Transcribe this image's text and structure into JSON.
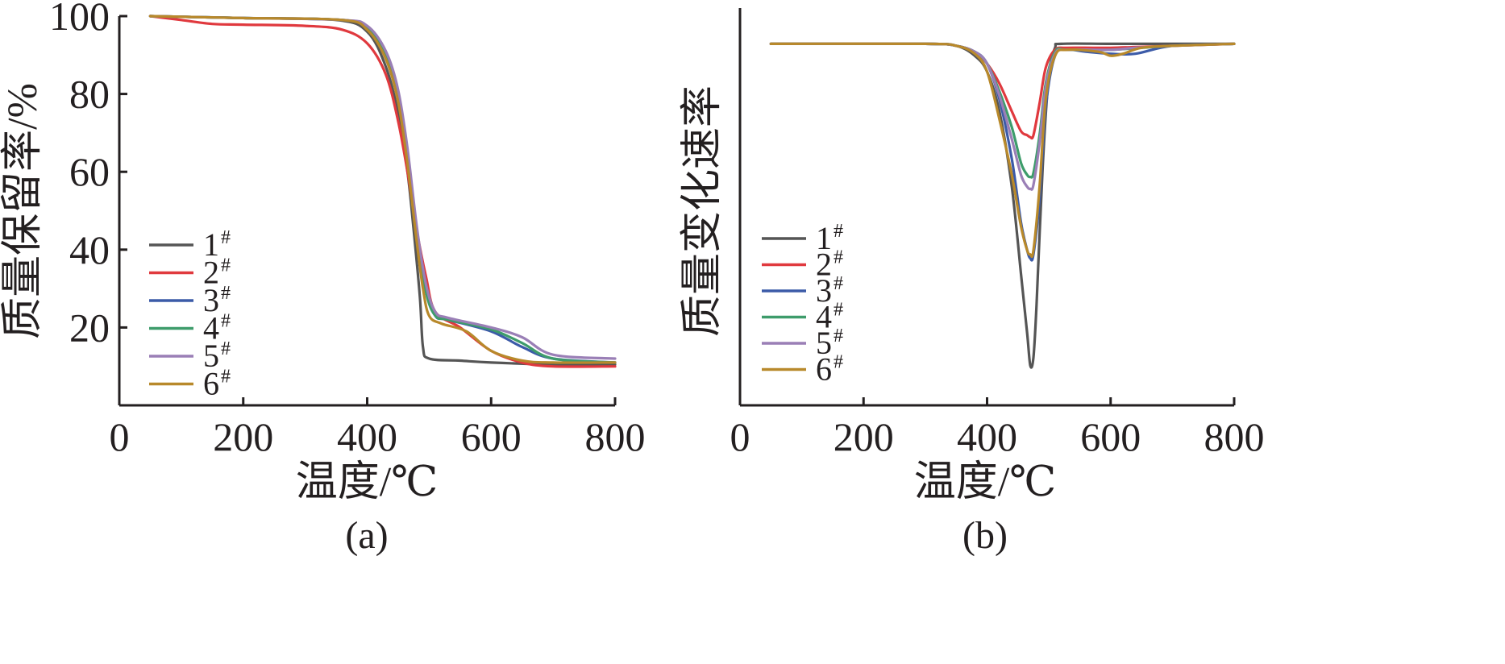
{
  "chart_data": [
    {
      "panel_label": "(a)",
      "type": "line",
      "xlabel": "温度/℃",
      "ylabel": "质量保留率/%",
      "xlim": [
        0,
        800
      ],
      "ylim": [
        0,
        100
      ],
      "xticks": [
        "0",
        "200",
        "400",
        "600",
        "800"
      ],
      "yticks": [
        "20",
        "40",
        "60",
        "80",
        "100"
      ],
      "ytick_values": [
        20,
        40,
        60,
        80,
        100
      ],
      "legend_position": "left-middle",
      "grid": false,
      "series": [
        {
          "name": "1",
          "sup": "#",
          "color": "#555555",
          "x": [
            50,
            200,
            350,
            400,
            430,
            450,
            465,
            475,
            485,
            490,
            500,
            550,
            600,
            700,
            800
          ],
          "y": [
            100,
            99.5,
            99,
            96,
            87,
            75,
            60,
            45,
            28,
            15,
            12,
            11.5,
            11,
            10.5,
            10.5
          ]
        },
        {
          "name": "2",
          "sup": "#",
          "color": "#e0393e",
          "x": [
            50,
            100,
            150,
            200,
            300,
            360,
            400,
            430,
            450,
            465,
            480,
            495,
            510,
            550,
            600,
            650,
            700,
            800
          ],
          "y": [
            100,
            99,
            98,
            97.8,
            97.5,
            96.5,
            93,
            85,
            73,
            60,
            45,
            33,
            24,
            20,
            14,
            11,
            10,
            10
          ]
        },
        {
          "name": "3",
          "sup": "#",
          "color": "#3c5ba8",
          "x": [
            50,
            200,
            360,
            400,
            430,
            450,
            465,
            480,
            495,
            510,
            530,
            600,
            650,
            700,
            800
          ],
          "y": [
            100,
            99.5,
            99,
            97,
            90,
            80,
            65,
            45,
            30,
            23,
            22,
            19,
            15,
            12,
            11
          ]
        },
        {
          "name": "4",
          "sup": "#",
          "color": "#3e9c6b",
          "x": [
            50,
            200,
            360,
            400,
            430,
            450,
            465,
            480,
            495,
            510,
            530,
            600,
            650,
            700,
            800
          ],
          "y": [
            100,
            99.5,
            99,
            97,
            90,
            79,
            64,
            44,
            29,
            23,
            22,
            19.5,
            16,
            12,
            11
          ]
        },
        {
          "name": "5",
          "sup": "#",
          "color": "#9a7fb6",
          "x": [
            50,
            200,
            360,
            400,
            430,
            450,
            465,
            480,
            495,
            510,
            530,
            600,
            650,
            700,
            800
          ],
          "y": [
            100,
            99.5,
            99,
            97.5,
            91,
            81,
            66,
            46,
            31,
            24,
            22.5,
            20,
            17.5,
            13,
            12
          ]
        },
        {
          "name": "6",
          "sup": "#",
          "color": "#b8892b",
          "x": [
            50,
            200,
            360,
            400,
            430,
            450,
            465,
            480,
            490,
            500,
            520,
            560,
            600,
            650,
            700,
            800
          ],
          "y": [
            100,
            99.5,
            99,
            96.5,
            89,
            78,
            62,
            42,
            30,
            23,
            21,
            19,
            14,
            11.5,
            11,
            11
          ]
        }
      ]
    },
    {
      "panel_label": "(b)",
      "type": "line",
      "xlabel": "温度/℃",
      "ylabel": "质量变化速率",
      "xlim": [
        0,
        800
      ],
      "ylim": [
        0,
        100
      ],
      "xticks": [
        "0",
        "200",
        "400",
        "600",
        "800"
      ],
      "yticks": [],
      "legend_position": "left-middle",
      "grid": false,
      "series": [
        {
          "name": "1",
          "sup": "#",
          "color": "#555555",
          "x": [
            50,
            300,
            350,
            380,
            400,
            420,
            440,
            455,
            465,
            470,
            475,
            480,
            490,
            500,
            510,
            520,
            600,
            700,
            800
          ],
          "y": [
            91,
            91,
            90.5,
            88,
            84,
            74,
            55,
            33,
            18,
            10,
            12,
            25,
            60,
            83,
            90,
            91,
            91,
            91,
            91
          ]
        },
        {
          "name": "2",
          "sup": "#",
          "color": "#e0393e",
          "x": [
            50,
            300,
            350,
            380,
            400,
            420,
            440,
            455,
            465,
            470,
            475,
            485,
            495,
            510,
            530,
            600,
            700,
            800
          ],
          "y": [
            91,
            91,
            90.5,
            89,
            86,
            81,
            74,
            69,
            68,
            67.5,
            68,
            76,
            85,
            89.5,
            90,
            90,
            90.5,
            91
          ]
        },
        {
          "name": "3",
          "sup": "#",
          "color": "#3c5ba8",
          "x": [
            50,
            300,
            350,
            380,
            400,
            420,
            440,
            455,
            465,
            470,
            475,
            485,
            495,
            510,
            530,
            560,
            600,
            640,
            700,
            800
          ],
          "y": [
            91,
            91,
            90.5,
            89,
            86,
            77,
            62,
            46,
            39,
            37,
            38,
            52,
            75,
            88,
            89.5,
            89,
            88.5,
            88.5,
            90.5,
            91
          ]
        },
        {
          "name": "4",
          "sup": "#",
          "color": "#3e9c6b",
          "x": [
            50,
            300,
            350,
            380,
            400,
            420,
            440,
            455,
            465,
            470,
            475,
            485,
            495,
            510,
            530,
            600,
            700,
            800
          ],
          "y": [
            91,
            91,
            90.5,
            89,
            86,
            79,
            70,
            61,
            58,
            57.5,
            58.5,
            68,
            81,
            89,
            89.5,
            89.5,
            90.5,
            91
          ]
        },
        {
          "name": "5",
          "sup": "#",
          "color": "#9a7fb6",
          "x": [
            50,
            300,
            350,
            380,
            400,
            420,
            440,
            455,
            465,
            470,
            475,
            485,
            495,
            510,
            530,
            600,
            640,
            700,
            800
          ],
          "y": [
            91,
            91,
            90.5,
            89,
            86,
            78,
            67,
            58,
            55,
            54.5,
            55.5,
            66,
            80,
            88.5,
            89.5,
            89.5,
            90,
            90.5,
            91
          ]
        },
        {
          "name": "6",
          "sup": "#",
          "color": "#b8892b",
          "x": [
            50,
            300,
            350,
            380,
            400,
            420,
            440,
            455,
            465,
            470,
            475,
            485,
            495,
            510,
            530,
            580,
            600,
            620,
            650,
            700,
            800
          ],
          "y": [
            91,
            91,
            90.5,
            88.5,
            84,
            72,
            58,
            45,
            39,
            38,
            39,
            55,
            77,
            88,
            89.5,
            89,
            88,
            88.5,
            90,
            90.5,
            91
          ]
        }
      ]
    }
  ]
}
